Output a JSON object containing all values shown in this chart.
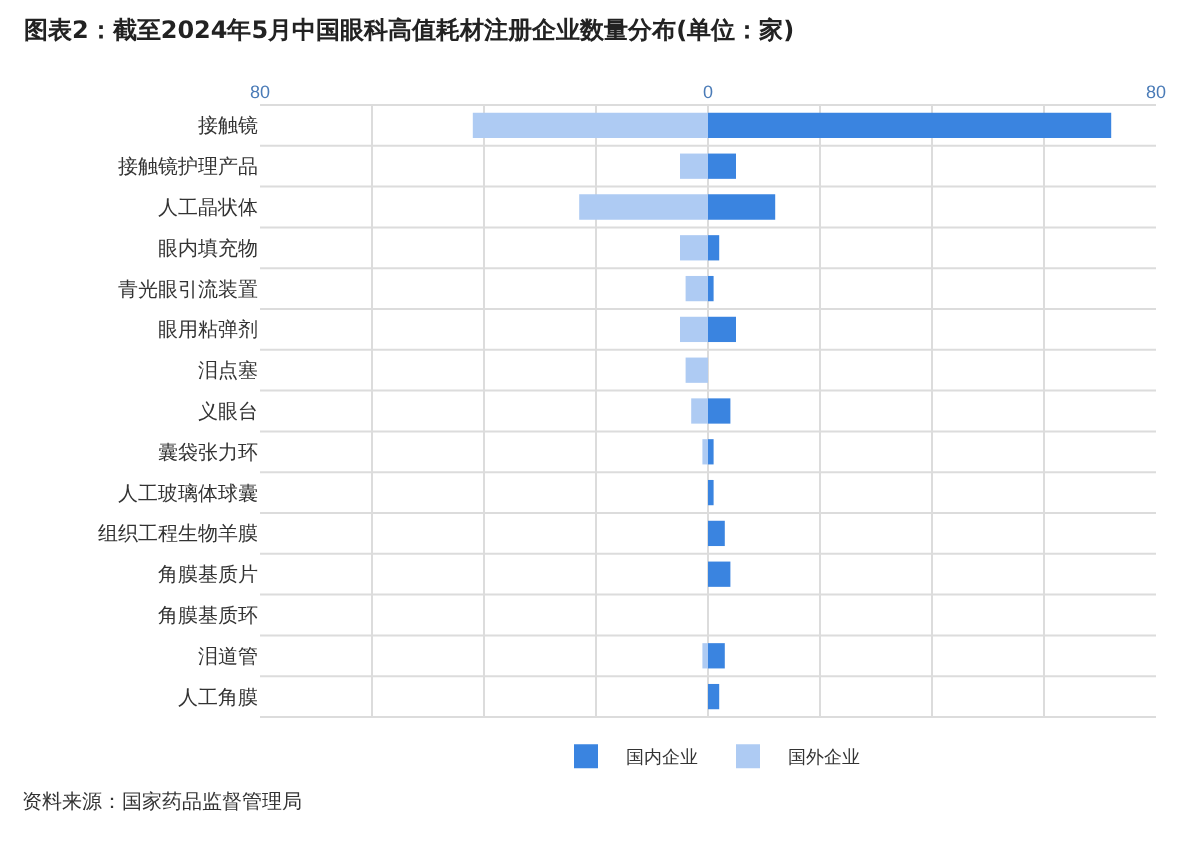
{
  "chart_data": {
    "type": "bar",
    "orientation": "horizontal",
    "stacked": true,
    "title": "图表2：截至2024年5月中国眼科高值耗材注册企业数量分布(单位：家)",
    "categories": [
      "接触镜",
      "接触镜护理产品",
      "人工晶状体",
      "眼内填充物",
      "青光眼引流装置",
      "眼用粘弹剂",
      "泪点塞",
      "义眼台",
      "囊袋张力环",
      "人工玻璃体球囊",
      "组织工程生物羊膜",
      "角膜基质片",
      "角膜基质环",
      "泪道管",
      "人工角膜"
    ],
    "series": [
      {
        "name": "国内企业",
        "color": "#3a84e0",
        "values": [
          72,
          5,
          12,
          2,
          1,
          5,
          0,
          4,
          1,
          1,
          3,
          4,
          0,
          3,
          2
        ]
      },
      {
        "name": "国外企业",
        "color": "#aecbf3",
        "values": [
          -42,
          -5,
          -23,
          -5,
          -4,
          -5,
          -4,
          -3,
          -1,
          0,
          0,
          0,
          0,
          -1,
          0
        ]
      }
    ],
    "xlim": [
      -80,
      80
    ],
    "xticks": [
      {
        "value": -80,
        "label": "80"
      },
      {
        "value": -60,
        "label": null
      },
      {
        "value": -40,
        "label": null
      },
      {
        "value": -20,
        "label": null
      },
      0,
      {
        "value": 20,
        "label": null
      },
      {
        "value": 40,
        "label": null
      },
      {
        "value": 60,
        "label": null
      },
      80
    ],
    "grid": true,
    "legend": "bottom",
    "annotations": [
      "资料来源：国家药品监督管理局"
    ]
  }
}
